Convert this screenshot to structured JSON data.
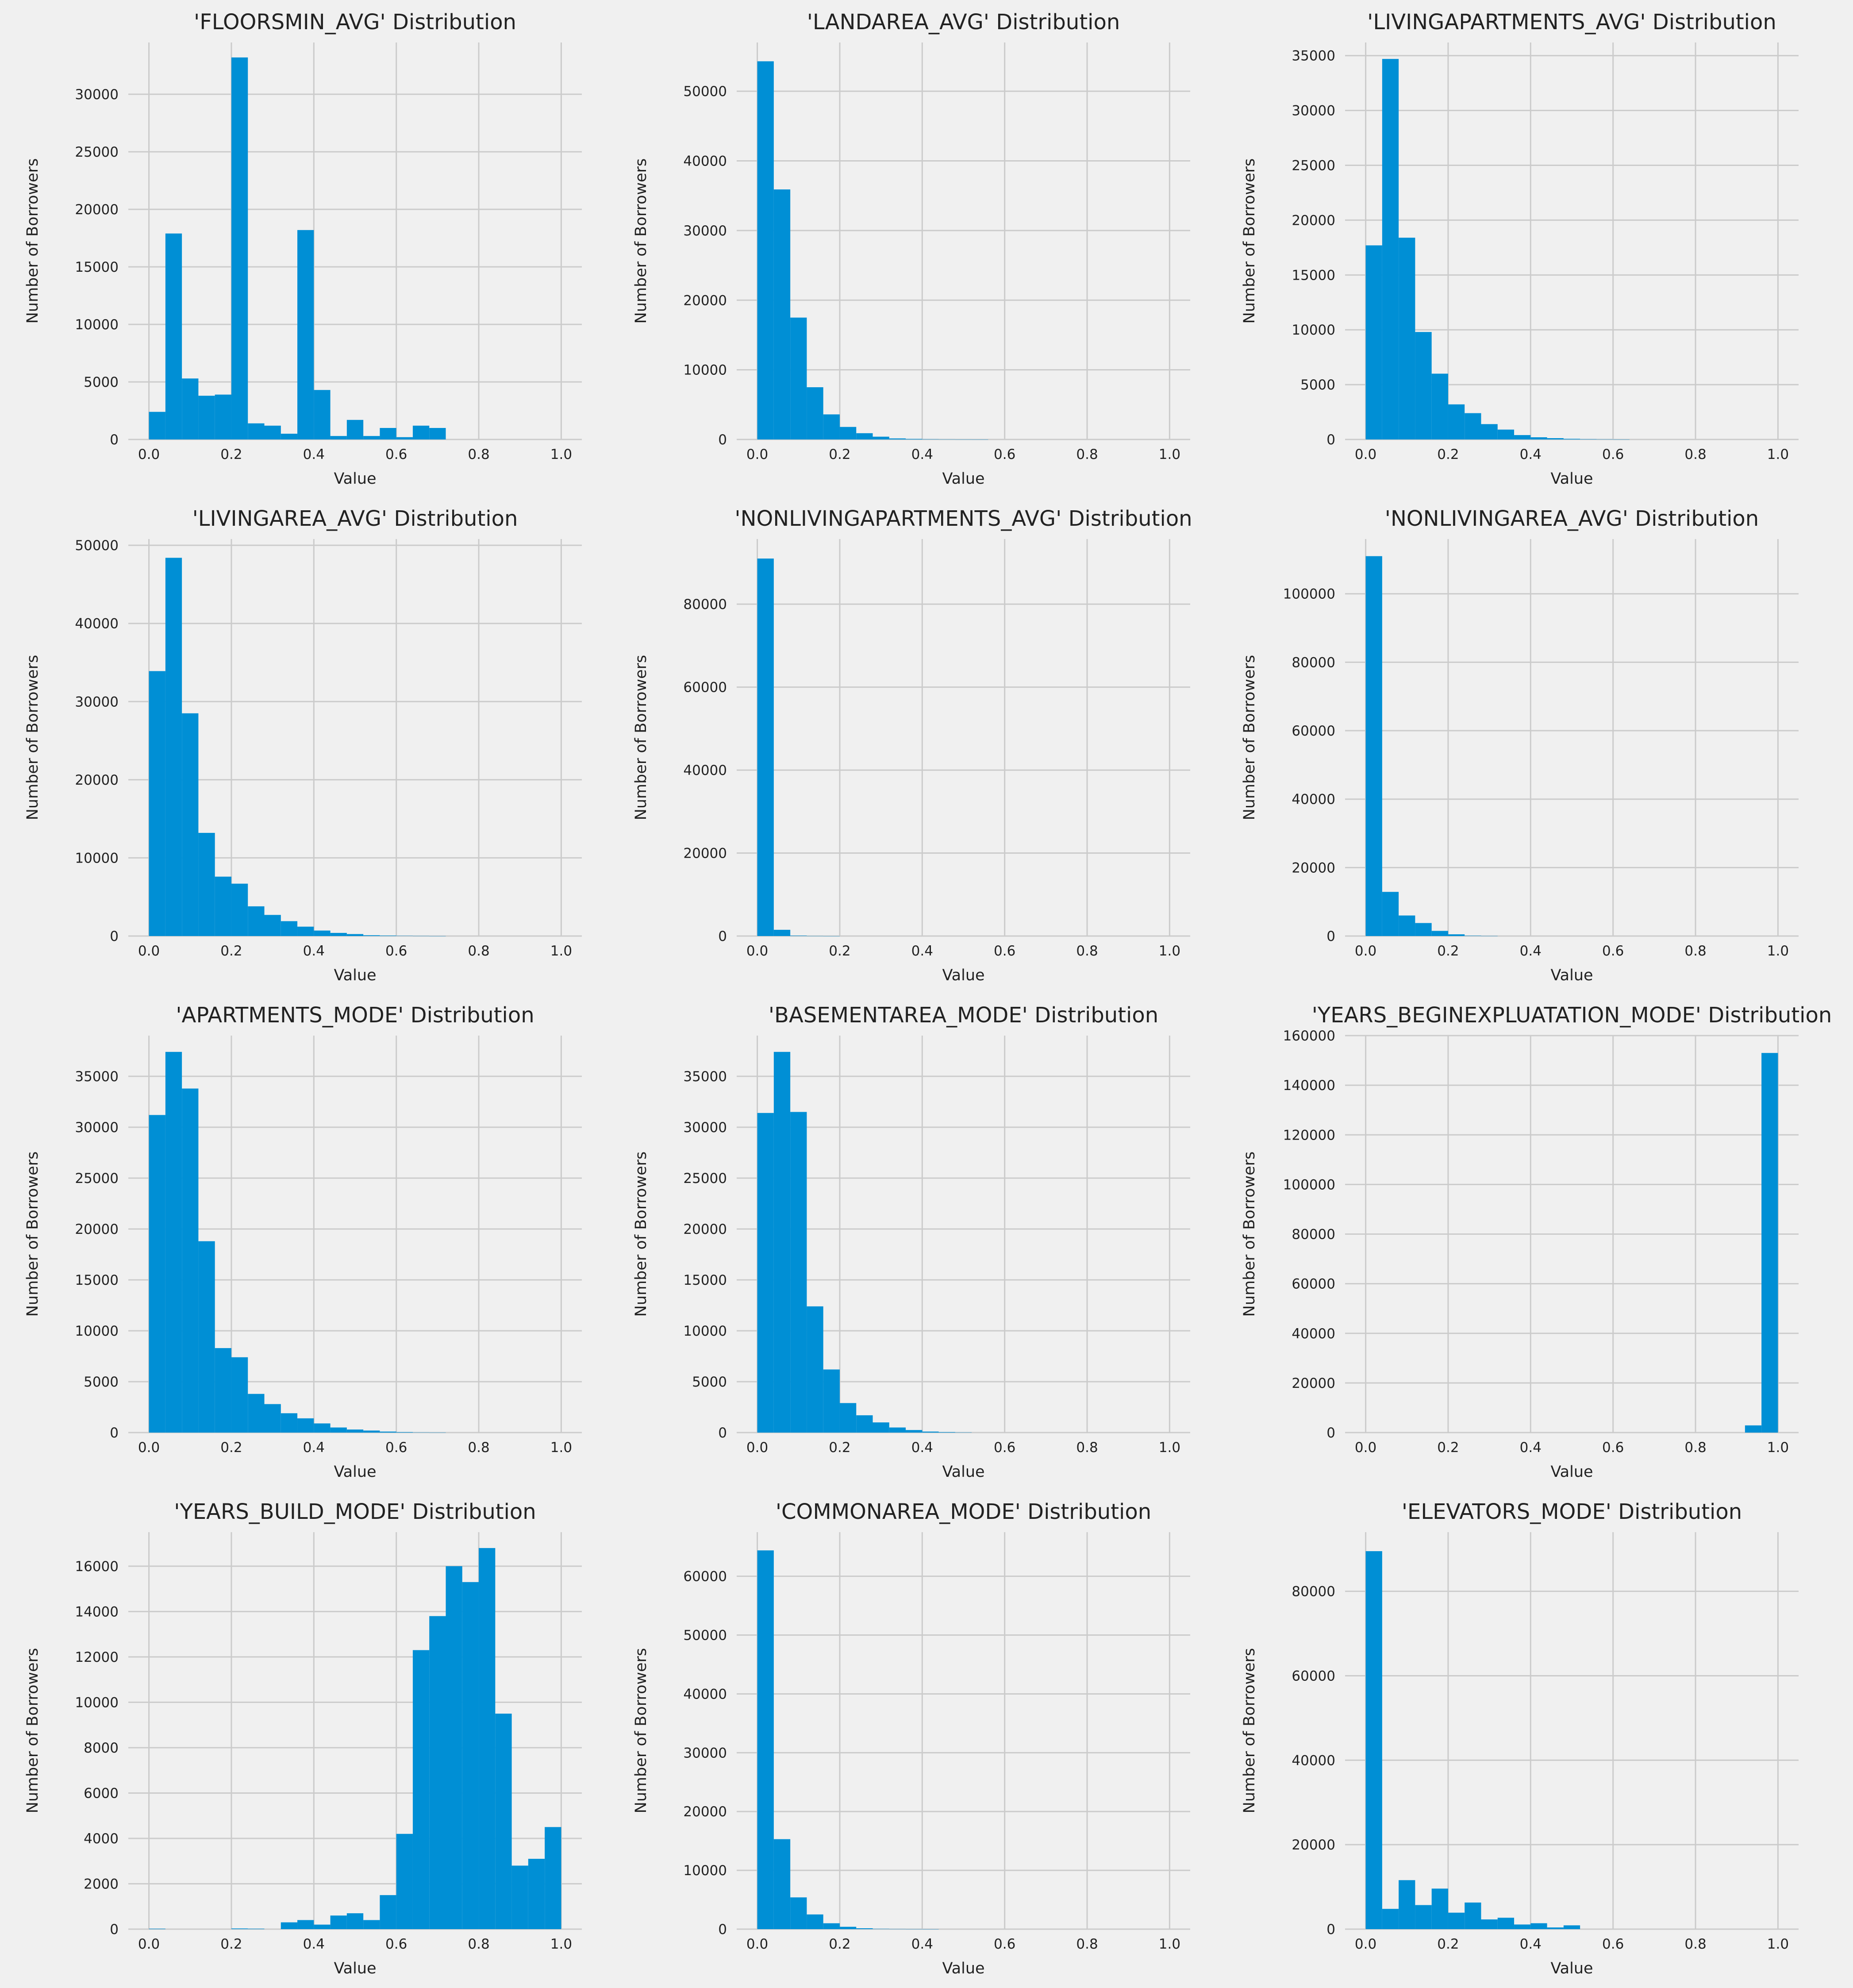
{
  "figure": {
    "background": "#f0f0f0",
    "bar_color": "#008fd5",
    "grid_color": "#cbcbcb",
    "text_color": "#222222"
  },
  "chart_data": [
    {
      "type": "bar",
      "title": "'FLOORSMIN_AVG' Distribution",
      "xlabel": "Value",
      "ylabel": "Number of Borrowers",
      "xlim": [
        -0.05,
        1.05
      ],
      "ylim": [
        0,
        34500
      ],
      "bin_width": 0.04,
      "xticks": [
        0.0,
        0.2,
        0.4,
        0.6,
        0.8,
        1.0
      ],
      "xtick_labels": [
        "0.0",
        "0.2",
        "0.4",
        "0.6",
        "0.8",
        "1.0"
      ],
      "yticks": [
        0,
        5000,
        10000,
        15000,
        20000,
        25000,
        30000
      ],
      "values": [
        2400,
        17900,
        5300,
        3800,
        3900,
        33200,
        1400,
        1200,
        500,
        18200,
        4300,
        300,
        1700,
        300,
        1000,
        200,
        1200,
        1000,
        0,
        0,
        0,
        0,
        0,
        0,
        0
      ]
    },
    {
      "type": "bar",
      "title": "'LANDAREA_AVG' Distribution",
      "xlabel": "Value",
      "ylabel": "Number of Borrowers",
      "xlim": [
        -0.05,
        1.05
      ],
      "ylim": [
        0,
        57000
      ],
      "bin_width": 0.04,
      "xticks": [
        0.0,
        0.2,
        0.4,
        0.6,
        0.8,
        1.0
      ],
      "xtick_labels": [
        "0.0",
        "0.2",
        "0.4",
        "0.6",
        "0.8",
        "1.0"
      ],
      "yticks": [
        0,
        10000,
        20000,
        30000,
        40000,
        50000
      ],
      "values": [
        54300,
        35900,
        17500,
        7500,
        3600,
        1800,
        900,
        400,
        150,
        80,
        40,
        20,
        10,
        5,
        0,
        0,
        0,
        0,
        0,
        0,
        0,
        0,
        0,
        0,
        0
      ]
    },
    {
      "type": "bar",
      "title": "'LIVINGAPARTMENTS_AVG' Distribution",
      "xlabel": "Value",
      "ylabel": "Number of Borrowers",
      "xlim": [
        -0.05,
        1.05
      ],
      "ylim": [
        0,
        36200
      ],
      "bin_width": 0.04,
      "xticks": [
        0.0,
        0.2,
        0.4,
        0.6,
        0.8,
        1.0
      ],
      "xtick_labels": [
        "0.0",
        "0.2",
        "0.4",
        "0.6",
        "0.8",
        "1.0"
      ],
      "yticks": [
        0,
        5000,
        10000,
        15000,
        20000,
        25000,
        30000,
        35000
      ],
      "values": [
        17700,
        34700,
        18400,
        9800,
        6000,
        3200,
        2400,
        1400,
        900,
        400,
        200,
        120,
        60,
        30,
        15,
        5,
        0,
        0,
        0,
        0,
        0,
        0,
        0,
        0,
        0
      ]
    },
    {
      "type": "bar",
      "title": "'LIVINGAREA_AVG' Distribution",
      "xlabel": "Value",
      "ylabel": "Number of Borrowers",
      "xlim": [
        -0.05,
        1.05
      ],
      "ylim": [
        0,
        50800
      ],
      "bin_width": 0.04,
      "xticks": [
        0.0,
        0.2,
        0.4,
        0.6,
        0.8,
        1.0
      ],
      "xtick_labels": [
        "0.0",
        "0.2",
        "0.4",
        "0.6",
        "0.8",
        "1.0"
      ],
      "yticks": [
        0,
        10000,
        20000,
        30000,
        40000,
        50000
      ],
      "values": [
        33900,
        48400,
        28500,
        13200,
        7600,
        6700,
        3800,
        2700,
        1900,
        1200,
        700,
        400,
        250,
        100,
        60,
        30,
        15,
        5,
        0,
        0,
        0,
        0,
        0,
        0,
        0
      ]
    },
    {
      "type": "bar",
      "title": "'NONLIVINGAPARTMENTS_AVG' Distribution",
      "xlabel": "Value",
      "ylabel": "Number of Borrowers",
      "xlim": [
        -0.05,
        1.05
      ],
      "ylim": [
        0,
        95700
      ],
      "bin_width": 0.04,
      "xticks": [
        0.0,
        0.2,
        0.4,
        0.6,
        0.8,
        1.0
      ],
      "xtick_labels": [
        "0.0",
        "0.2",
        "0.4",
        "0.6",
        "0.8",
        "1.0"
      ],
      "yticks": [
        0,
        20000,
        40000,
        60000,
        80000
      ],
      "values": [
        91000,
        1500,
        100,
        20,
        5,
        0,
        0,
        0,
        0,
        0,
        0,
        0,
        0,
        0,
        0,
        0,
        0,
        0,
        0,
        0,
        0,
        0,
        0,
        0,
        0
      ]
    },
    {
      "type": "bar",
      "title": "'NONLIVINGAREA_AVG' Distribution",
      "xlabel": "Value",
      "ylabel": "Number of Borrowers",
      "xlim": [
        -0.05,
        1.05
      ],
      "ylim": [
        0,
        116000
      ],
      "bin_width": 0.04,
      "xticks": [
        0.0,
        0.2,
        0.4,
        0.6,
        0.8,
        1.0
      ],
      "xtick_labels": [
        "0.0",
        "0.2",
        "0.4",
        "0.6",
        "0.8",
        "1.0"
      ],
      "yticks": [
        0,
        20000,
        40000,
        60000,
        80000,
        100000
      ],
      "values": [
        111000,
        12900,
        6000,
        3800,
        1500,
        500,
        100,
        30,
        0,
        0,
        0,
        0,
        0,
        0,
        0,
        0,
        0,
        0,
        0,
        0,
        0,
        0,
        0,
        0,
        0
      ]
    },
    {
      "type": "bar",
      "title": "'APARTMENTS_MODE' Distribution",
      "xlabel": "Value",
      "ylabel": "Number of Borrowers",
      "xlim": [
        -0.05,
        1.05
      ],
      "ylim": [
        0,
        39000
      ],
      "bin_width": 0.04,
      "xticks": [
        0.0,
        0.2,
        0.4,
        0.6,
        0.8,
        1.0
      ],
      "xtick_labels": [
        "0.0",
        "0.2",
        "0.4",
        "0.6",
        "0.8",
        "1.0"
      ],
      "yticks": [
        0,
        5000,
        10000,
        15000,
        20000,
        25000,
        30000,
        35000
      ],
      "values": [
        31200,
        37400,
        33800,
        18800,
        8300,
        7400,
        3800,
        2800,
        1900,
        1400,
        900,
        500,
        300,
        200,
        100,
        50,
        20,
        10,
        0,
        0,
        0,
        0,
        0,
        0,
        0
      ]
    },
    {
      "type": "bar",
      "title": "'BASEMENTAREA_MODE' Distribution",
      "xlabel": "Value",
      "ylabel": "Number of Borrowers",
      "xlim": [
        -0.05,
        1.05
      ],
      "ylim": [
        0,
        39000
      ],
      "bin_width": 0.04,
      "xticks": [
        0.0,
        0.2,
        0.4,
        0.6,
        0.8,
        1.0
      ],
      "xtick_labels": [
        "0.0",
        "0.2",
        "0.4",
        "0.6",
        "0.8",
        "1.0"
      ],
      "yticks": [
        0,
        5000,
        10000,
        15000,
        20000,
        25000,
        30000,
        35000
      ],
      "values": [
        31400,
        37400,
        31500,
        12400,
        6200,
        2900,
        1700,
        1000,
        500,
        250,
        100,
        50,
        20,
        0,
        0,
        0,
        0,
        0,
        0,
        0,
        0,
        0,
        0,
        0,
        0
      ]
    },
    {
      "type": "bar",
      "title": "'YEARS_BEGINEXPLUATATION_MODE' Distribution",
      "xlabel": "Value",
      "ylabel": "Number of Borrowers",
      "xlim": [
        -0.05,
        1.05
      ],
      "ylim": [
        0,
        160000
      ],
      "bin_width": 0.04,
      "xticks": [
        0.0,
        0.2,
        0.4,
        0.6,
        0.8,
        1.0
      ],
      "xtick_labels": [
        "0.0",
        "0.2",
        "0.4",
        "0.6",
        "0.8",
        "1.0"
      ],
      "yticks": [
        0,
        20000,
        40000,
        60000,
        80000,
        100000,
        120000,
        140000,
        160000
      ],
      "values": [
        0,
        0,
        0,
        0,
        0,
        0,
        0,
        0,
        0,
        0,
        0,
        0,
        0,
        0,
        0,
        0,
        0,
        0,
        0,
        0,
        0,
        0,
        0,
        2900,
        153000
      ]
    },
    {
      "type": "bar",
      "title": "'YEARS_BUILD_MODE' Distribution",
      "xlabel": "Value",
      "ylabel": "Number of Borrowers",
      "xlim": [
        -0.05,
        1.05
      ],
      "ylim": [
        0,
        17500
      ],
      "bin_width": 0.04,
      "xticks": [
        0.0,
        0.2,
        0.4,
        0.6,
        0.8,
        1.0
      ],
      "xtick_labels": [
        "0.0",
        "0.2",
        "0.4",
        "0.6",
        "0.8",
        "1.0"
      ],
      "yticks": [
        0,
        2000,
        4000,
        6000,
        8000,
        10000,
        12000,
        14000,
        16000
      ],
      "values": [
        20,
        0,
        0,
        0,
        0,
        30,
        20,
        0,
        300,
        400,
        200,
        600,
        700,
        400,
        1500,
        4200,
        12300,
        13800,
        16000,
        15300,
        16800,
        9500,
        2800,
        3100,
        4500
      ]
    },
    {
      "type": "bar",
      "title": "'COMMONAREA_MODE' Distribution",
      "xlabel": "Value",
      "ylabel": "Number of Borrowers",
      "xlim": [
        -0.05,
        1.05
      ],
      "ylim": [
        0,
        67500
      ],
      "bin_width": 0.04,
      "xticks": [
        0.0,
        0.2,
        0.4,
        0.6,
        0.8,
        1.0
      ],
      "xtick_labels": [
        "0.0",
        "0.2",
        "0.4",
        "0.6",
        "0.8",
        "1.0"
      ],
      "yticks": [
        0,
        10000,
        20000,
        30000,
        40000,
        50000,
        60000
      ],
      "values": [
        64400,
        15300,
        5400,
        2500,
        1000,
        400,
        150,
        50,
        20,
        10,
        5,
        0,
        0,
        0,
        0,
        0,
        0,
        0,
        0,
        0,
        0,
        0,
        0,
        0,
        0
      ]
    },
    {
      "type": "bar",
      "title": "'ELEVATORS_MODE' Distribution",
      "xlabel": "Value",
      "ylabel": "Number of Borrowers",
      "xlim": [
        -0.05,
        1.05
      ],
      "ylim": [
        0,
        94000
      ],
      "bin_width": 0.04,
      "xticks": [
        0.0,
        0.2,
        0.4,
        0.6,
        0.8,
        1.0
      ],
      "xtick_labels": [
        "0.0",
        "0.2",
        "0.4",
        "0.6",
        "0.8",
        "1.0"
      ],
      "yticks": [
        0,
        20000,
        40000,
        60000,
        80000
      ],
      "values": [
        89500,
        4800,
        11600,
        5700,
        9600,
        3900,
        6300,
        2300,
        2700,
        1100,
        1400,
        400,
        900,
        0,
        0,
        0,
        0,
        0,
        0,
        0,
        0,
        0,
        0,
        0,
        0
      ]
    }
  ]
}
